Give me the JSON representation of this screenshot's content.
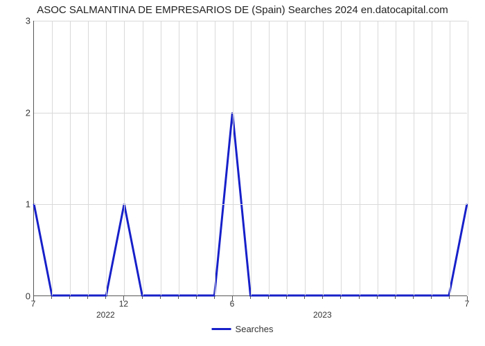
{
  "chart": {
    "type": "line",
    "title": "ASOC SALMANTINA DE EMPRESARIOS DE (Spain) Searches 2024 en.datocapital.com",
    "title_fontsize": 15,
    "background_color": "#ffffff",
    "grid_color": "#d9d9d9",
    "axis_color": "#555555",
    "text_color": "#333333",
    "ylim": [
      0,
      3
    ],
    "ytick_step": 1,
    "y_labels": [
      "0",
      "1",
      "2",
      "3"
    ],
    "x_n_points": 25,
    "x_major_ticks": [
      {
        "index": 0,
        "label": "7"
      },
      {
        "index": 5,
        "label": "12"
      },
      {
        "index": 11,
        "label": "6"
      },
      {
        "index": 24,
        "label": "7"
      }
    ],
    "x_group_labels": [
      {
        "center_index": 4,
        "label": "2022"
      },
      {
        "center_index": 16,
        "label": "2023"
      }
    ],
    "series": {
      "name": "Searches",
      "color": "#1720c9",
      "line_width": 3,
      "values": [
        1,
        0,
        0,
        0,
        0,
        1,
        0,
        0,
        0,
        0,
        0,
        2,
        0,
        0,
        0,
        0,
        0,
        0,
        0,
        0,
        0,
        0,
        0,
        0,
        1
      ]
    },
    "legend": {
      "label": "Searches"
    }
  }
}
